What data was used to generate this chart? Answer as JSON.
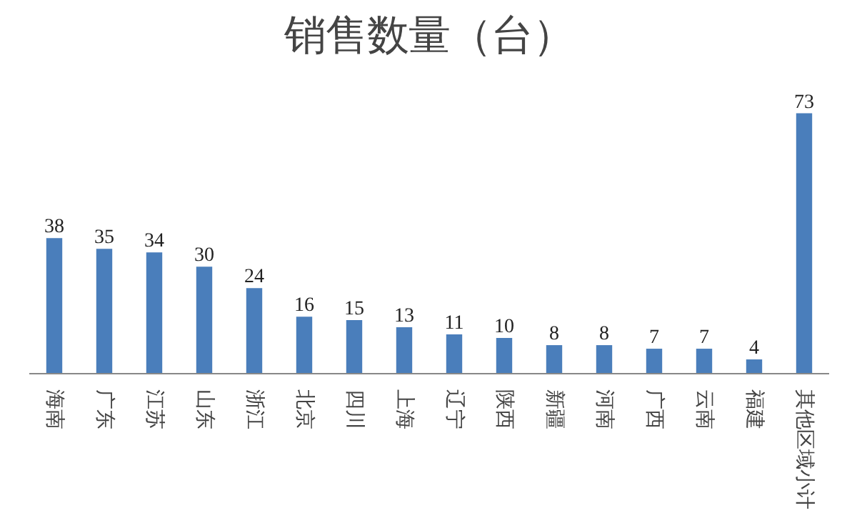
{
  "chart_data": {
    "type": "bar",
    "title": "销售数量（台）",
    "categories": [
      "海南",
      "广东",
      "江苏",
      "山东",
      "浙江",
      "北京",
      "四川",
      "上海",
      "辽宁",
      "陕西",
      "新疆",
      "河南",
      "广西",
      "云南",
      "福建",
      "其他区域小计"
    ],
    "values": [
      38,
      35,
      34,
      30,
      24,
      16,
      15,
      13,
      11,
      10,
      8,
      8,
      7,
      7,
      4,
      73
    ],
    "color": "#4a7ebb",
    "data_labels": true,
    "tick_labels": "x"
  }
}
